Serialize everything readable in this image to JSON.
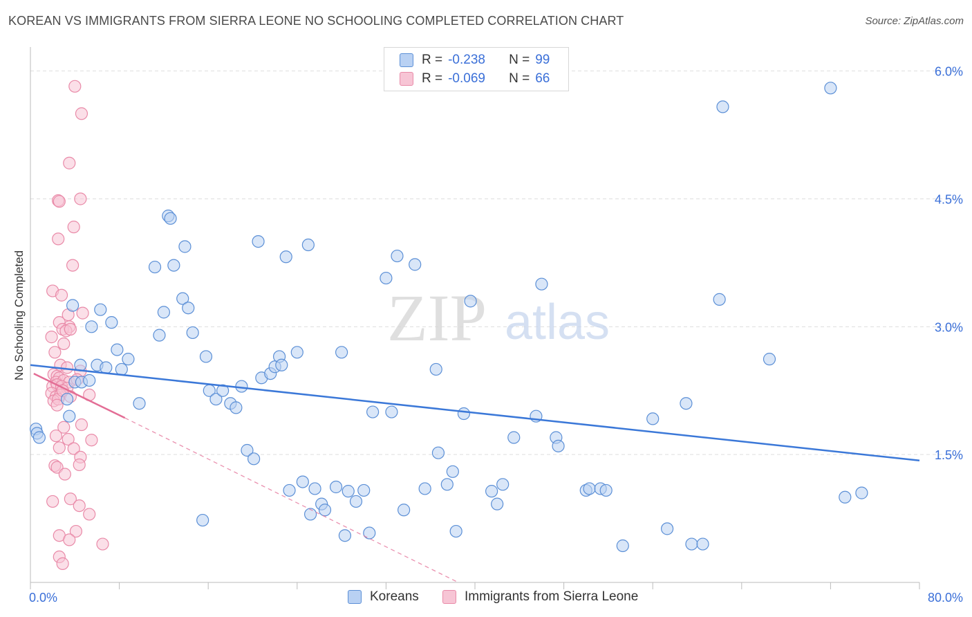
{
  "title": "KOREAN VS IMMIGRANTS FROM SIERRA LEONE NO SCHOOLING COMPLETED CORRELATION CHART",
  "source": "Source: ZipAtlas.com",
  "watermark": {
    "zip": "ZIP",
    "atlas": "atlas"
  },
  "colors": {
    "blue_fill": "#b9d1f3",
    "blue_stroke": "#5b8fd6",
    "blue_line": "#3b78d8",
    "pink_fill": "#f7c5d5",
    "pink_stroke": "#e98aa8",
    "pink_line": "#e36d95",
    "axis_text": "#3a6fd8",
    "grid": "#dddddd"
  },
  "legend": {
    "rows": [
      {
        "r_label": "R =",
        "r_value": "-0.238",
        "n_label": "N =",
        "n_value": "99"
      },
      {
        "r_label": "R =",
        "r_value": "-0.069",
        "n_label": "N =",
        "n_value": "66"
      }
    ]
  },
  "bottom_legend": [
    "Koreans",
    "Immigrants from Sierra Leone"
  ],
  "chart_data": {
    "type": "scatter",
    "title": "KOREAN VS IMMIGRANTS FROM SIERRA LEONE NO SCHOOLING COMPLETED CORRELATION CHART",
    "xlabel": "",
    "ylabel": "No Schooling Completed",
    "xlim": [
      0,
      80
    ],
    "ylim": [
      0,
      6.2
    ],
    "x_tick_labels": [
      "0.0%",
      "80.0%"
    ],
    "y_ticks": [
      1.5,
      3.0,
      4.5,
      6.0
    ],
    "y_tick_labels": [
      "1.5%",
      "3.0%",
      "4.5%",
      "6.0%"
    ],
    "grid": true,
    "legend_position": "top-center",
    "series": [
      {
        "name": "Koreans",
        "r": -0.238,
        "n": 99,
        "trend": {
          "x": [
            0,
            80
          ],
          "y": [
            2.55,
            1.43
          ]
        },
        "points": [
          [
            0.5,
            1.8
          ],
          [
            0.6,
            1.75
          ],
          [
            0.8,
            1.7
          ],
          [
            3.5,
            1.95
          ],
          [
            4.0,
            2.35
          ],
          [
            3.3,
            2.15
          ],
          [
            4.6,
            2.35
          ],
          [
            3.8,
            3.25
          ],
          [
            4.5,
            2.55
          ],
          [
            5.3,
            2.37
          ],
          [
            5.5,
            3.0
          ],
          [
            6.0,
            2.55
          ],
          [
            6.3,
            3.2
          ],
          [
            6.8,
            2.52
          ],
          [
            7.3,
            3.05
          ],
          [
            7.8,
            2.73
          ],
          [
            8.2,
            2.5
          ],
          [
            8.8,
            2.62
          ],
          [
            9.8,
            2.1
          ],
          [
            11.2,
            3.7
          ],
          [
            11.6,
            2.9
          ],
          [
            12.0,
            3.17
          ],
          [
            12.9,
            3.72
          ],
          [
            12.4,
            4.3
          ],
          [
            12.6,
            4.27
          ],
          [
            13.7,
            3.33
          ],
          [
            14.2,
            3.22
          ],
          [
            13.9,
            3.94
          ],
          [
            14.6,
            2.93
          ],
          [
            15.5,
            0.73
          ],
          [
            15.8,
            2.65
          ],
          [
            16.1,
            2.25
          ],
          [
            16.7,
            2.15
          ],
          [
            17.3,
            2.25
          ],
          [
            18.0,
            2.1
          ],
          [
            18.5,
            2.05
          ],
          [
            19.0,
            2.3
          ],
          [
            19.5,
            1.55
          ],
          [
            20.1,
            1.45
          ],
          [
            20.5,
            4.0
          ],
          [
            20.8,
            2.4
          ],
          [
            21.6,
            2.45
          ],
          [
            22.0,
            2.53
          ],
          [
            22.4,
            2.65
          ],
          [
            22.6,
            2.55
          ],
          [
            23.3,
            1.08
          ],
          [
            23.0,
            3.82
          ],
          [
            24.5,
            1.18
          ],
          [
            24.0,
            2.7
          ],
          [
            25.0,
            3.96
          ],
          [
            25.2,
            0.8
          ],
          [
            25.6,
            1.1
          ],
          [
            26.2,
            0.92
          ],
          [
            26.5,
            0.85
          ],
          [
            27.5,
            1.12
          ],
          [
            28.0,
            2.7
          ],
          [
            28.3,
            0.55
          ],
          [
            28.6,
            1.07
          ],
          [
            29.3,
            0.95
          ],
          [
            30.0,
            1.08
          ],
          [
            30.5,
            0.58
          ],
          [
            30.8,
            2.0
          ],
          [
            32.0,
            3.57
          ],
          [
            32.5,
            2.0
          ],
          [
            33.0,
            3.83
          ],
          [
            33.6,
            0.85
          ],
          [
            34.6,
            3.73
          ],
          [
            35.5,
            1.1
          ],
          [
            36.5,
            2.5
          ],
          [
            36.7,
            1.52
          ],
          [
            37.5,
            1.15
          ],
          [
            38.0,
            1.3
          ],
          [
            38.3,
            0.6
          ],
          [
            39.0,
            1.98
          ],
          [
            39.6,
            3.3
          ],
          [
            41.5,
            1.07
          ],
          [
            42.0,
            0.92
          ],
          [
            42.5,
            1.15
          ],
          [
            43.5,
            1.7
          ],
          [
            45.5,
            1.95
          ],
          [
            46.0,
            3.5
          ],
          [
            47.3,
            1.7
          ],
          [
            47.5,
            1.6
          ],
          [
            50.0,
            1.08
          ],
          [
            50.3,
            1.1
          ],
          [
            51.3,
            1.1
          ],
          [
            51.8,
            1.08
          ],
          [
            53.3,
            0.43
          ],
          [
            56.0,
            1.92
          ],
          [
            57.3,
            0.63
          ],
          [
            59.0,
            2.1
          ],
          [
            59.5,
            0.45
          ],
          [
            60.5,
            0.45
          ],
          [
            62.0,
            3.32
          ],
          [
            62.3,
            5.58
          ],
          [
            66.5,
            2.62
          ],
          [
            72.0,
            5.8
          ],
          [
            73.3,
            1.0
          ],
          [
            74.8,
            1.05
          ]
        ]
      },
      {
        "name": "Immigrants from Sierra Leone",
        "r": -0.069,
        "n": 66,
        "trend": {
          "x": [
            0.3,
            8.5
          ],
          "y": [
            2.45,
            1.93
          ]
        },
        "trend_extension": {
          "x": [
            8.5,
            38.5
          ],
          "y": [
            1.93,
            0.0
          ]
        },
        "points": [
          [
            4.0,
            5.82
          ],
          [
            4.6,
            5.5
          ],
          [
            3.5,
            4.92
          ],
          [
            2.5,
            4.48
          ],
          [
            2.6,
            4.47
          ],
          [
            4.5,
            4.5
          ],
          [
            3.9,
            4.17
          ],
          [
            2.5,
            4.03
          ],
          [
            3.8,
            3.72
          ],
          [
            2.0,
            3.42
          ],
          [
            2.8,
            3.37
          ],
          [
            4.7,
            3.16
          ],
          [
            2.6,
            3.05
          ],
          [
            3.4,
            3.14
          ],
          [
            3.5,
            3.0
          ],
          [
            2.9,
            2.97
          ],
          [
            3.2,
            2.95
          ],
          [
            3.6,
            2.97
          ],
          [
            3.0,
            2.8
          ],
          [
            1.9,
            2.88
          ],
          [
            2.2,
            2.7
          ],
          [
            2.7,
            2.55
          ],
          [
            3.3,
            2.52
          ],
          [
            4.5,
            2.48
          ],
          [
            2.1,
            2.44
          ],
          [
            2.4,
            2.42
          ],
          [
            2.6,
            2.4
          ],
          [
            2.3,
            2.35
          ],
          [
            3.0,
            2.37
          ],
          [
            3.5,
            2.35
          ],
          [
            2.0,
            2.3
          ],
          [
            2.4,
            2.32
          ],
          [
            2.8,
            2.3
          ],
          [
            3.3,
            2.28
          ],
          [
            4.2,
            2.38
          ],
          [
            1.9,
            2.22
          ],
          [
            2.3,
            2.18
          ],
          [
            2.7,
            2.2
          ],
          [
            3.6,
            2.18
          ],
          [
            5.3,
            2.2
          ],
          [
            2.1,
            2.13
          ],
          [
            2.5,
            2.15
          ],
          [
            3.0,
            1.82
          ],
          [
            4.6,
            1.85
          ],
          [
            2.3,
            1.72
          ],
          [
            3.4,
            1.68
          ],
          [
            5.5,
            1.67
          ],
          [
            2.6,
            1.58
          ],
          [
            3.9,
            1.57
          ],
          [
            4.5,
            1.47
          ],
          [
            2.2,
            1.37
          ],
          [
            2.4,
            1.35
          ],
          [
            3.1,
            1.27
          ],
          [
            4.4,
            1.38
          ],
          [
            2.0,
            0.95
          ],
          [
            3.6,
            0.98
          ],
          [
            4.4,
            0.9
          ],
          [
            5.3,
            0.8
          ],
          [
            4.1,
            0.6
          ],
          [
            2.6,
            0.55
          ],
          [
            3.5,
            0.5
          ],
          [
            6.5,
            0.45
          ],
          [
            2.6,
            0.3
          ],
          [
            2.9,
            0.22
          ],
          [
            2.4,
            2.08
          ],
          [
            2.9,
            2.25
          ]
        ]
      }
    ]
  }
}
